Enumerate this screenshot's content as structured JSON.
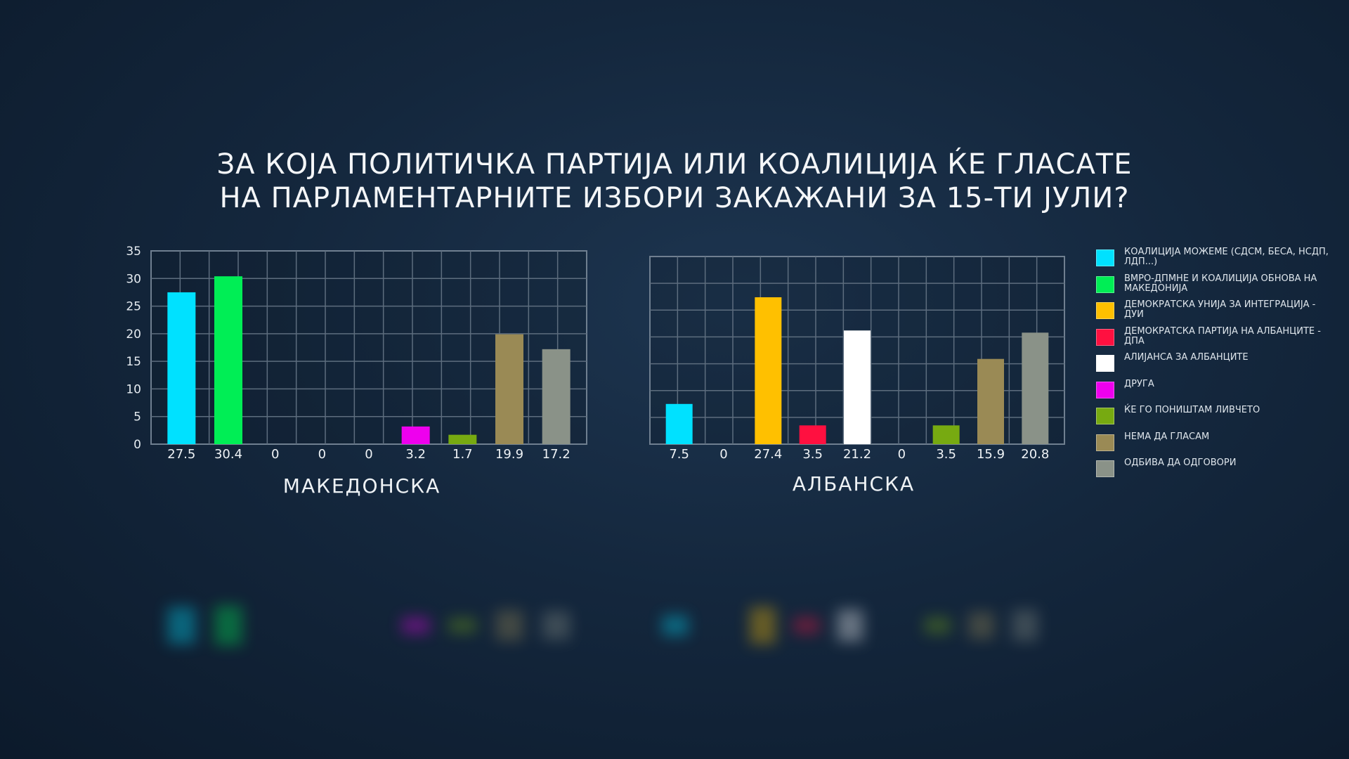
{
  "title": {
    "line1": "ЗА КОЈА ПОЛИТИЧКА ПАРТИЈА ИЛИ КОАЛИЦИЈА ЌЕ ГЛАСАТЕ",
    "line2": "НА ПАРЛАМЕНТАРНИТЕ ИЗБОРИ ЗАКАЖАНИ ЗА 15-ТИ ЈУЛИ?"
  },
  "legend": [
    {
      "label": "КОАЛИЦИЈА МОЖЕМЕ (СДСМ, БЕСА, НСДП, ЛДП...)",
      "color": "#00e1ff"
    },
    {
      "label": "ВМРО-ДПМНЕ И КОАЛИЦИЈА ОБНОВА НА МАКЕДОНИЈА",
      "color": "#00ee55"
    },
    {
      "label": "ДЕМОКРАТСКА УНИЈА ЗА ИНТЕГРАЦИЈА - ДУИ",
      "color": "#ffc000"
    },
    {
      "label": "ДЕМОКРАТСКА ПАРТИЈА НА АЛБАНЦИТЕ - ДПА",
      "color": "#ff1040"
    },
    {
      "label": "АЛИЈАНСА ЗА АЛБАНЦИТЕ",
      "color": "#ffffff"
    },
    {
      "label": "ДРУГА",
      "color": "#ee00ee"
    },
    {
      "label": "ЌЕ ГО ПОНИШТАМ ЛИВЧЕТО",
      "color": "#77aa11"
    },
    {
      "label": "НЕМА ДА ГЛАСАМ",
      "color": "#9a8a55"
    },
    {
      "label": "ОДБИВА ДА ОДГОВОРИ",
      "color": "#8a9288"
    }
  ],
  "chart_data": [
    {
      "type": "bar",
      "name": "МАКЕДОНСКА",
      "categories": [
        "КОАЛИЦИЈА МОЖЕМЕ",
        "ВМРО-ДПМНЕ",
        "ДУИ",
        "ДПА",
        "АЛИЈАНСА ЗА АЛБАНЦИТЕ",
        "ДРУГА",
        "ЌЕ ГО ПОНИШТАМ ЛИВЧЕТО",
        "НЕМА ДА ГЛАСАМ",
        "ОДБИВА ДА ОДГОВОРИ"
      ],
      "values": [
        27.5,
        30.4,
        0,
        0,
        0,
        3.2,
        1.7,
        19.9,
        17.2
      ],
      "value_labels": [
        "27.5",
        "30.4",
        "0",
        "0",
        "0",
        "3.2",
        "1.7",
        "19.9",
        "17.2"
      ],
      "colors": [
        "#00e1ff",
        "#00ee55",
        "#ffc000",
        "#ff1040",
        "#ffffff",
        "#ee00ee",
        "#77aa11",
        "#9a8a55",
        "#8a9288"
      ],
      "ylim": [
        0,
        35
      ],
      "yticks": [
        "0",
        "5",
        "10",
        "15",
        "20",
        "25",
        "30",
        "35"
      ],
      "grid": true
    },
    {
      "type": "bar",
      "name": "АЛБАНСКА",
      "categories": [
        "КОАЛИЦИЈА МОЖЕМЕ",
        "ВМРО-ДПМНЕ",
        "ДУИ",
        "ДПА",
        "АЛИЈАНСА ЗА АЛБАНЦИТЕ",
        "ДРУГА",
        "ЌЕ ГО ПОНИШТАМ ЛИВЧЕТО",
        "НЕМА ДА ГЛАСАМ",
        "ОДБИВА ДА ОДГОВОРИ"
      ],
      "values": [
        7.5,
        0,
        27.4,
        3.5,
        21.2,
        0,
        3.5,
        15.9,
        20.8
      ],
      "value_labels": [
        "7.5",
        "0",
        "27.4",
        "3.5",
        "21.2",
        "0",
        "3.5",
        "15.9",
        "20.8"
      ],
      "colors": [
        "#00e1ff",
        "#00ee55",
        "#ffc000",
        "#ff1040",
        "#ffffff",
        "#ee00ee",
        "#77aa11",
        "#9a8a55",
        "#8a9288"
      ],
      "ylim": [
        0,
        35
      ],
      "grid": true
    }
  ]
}
